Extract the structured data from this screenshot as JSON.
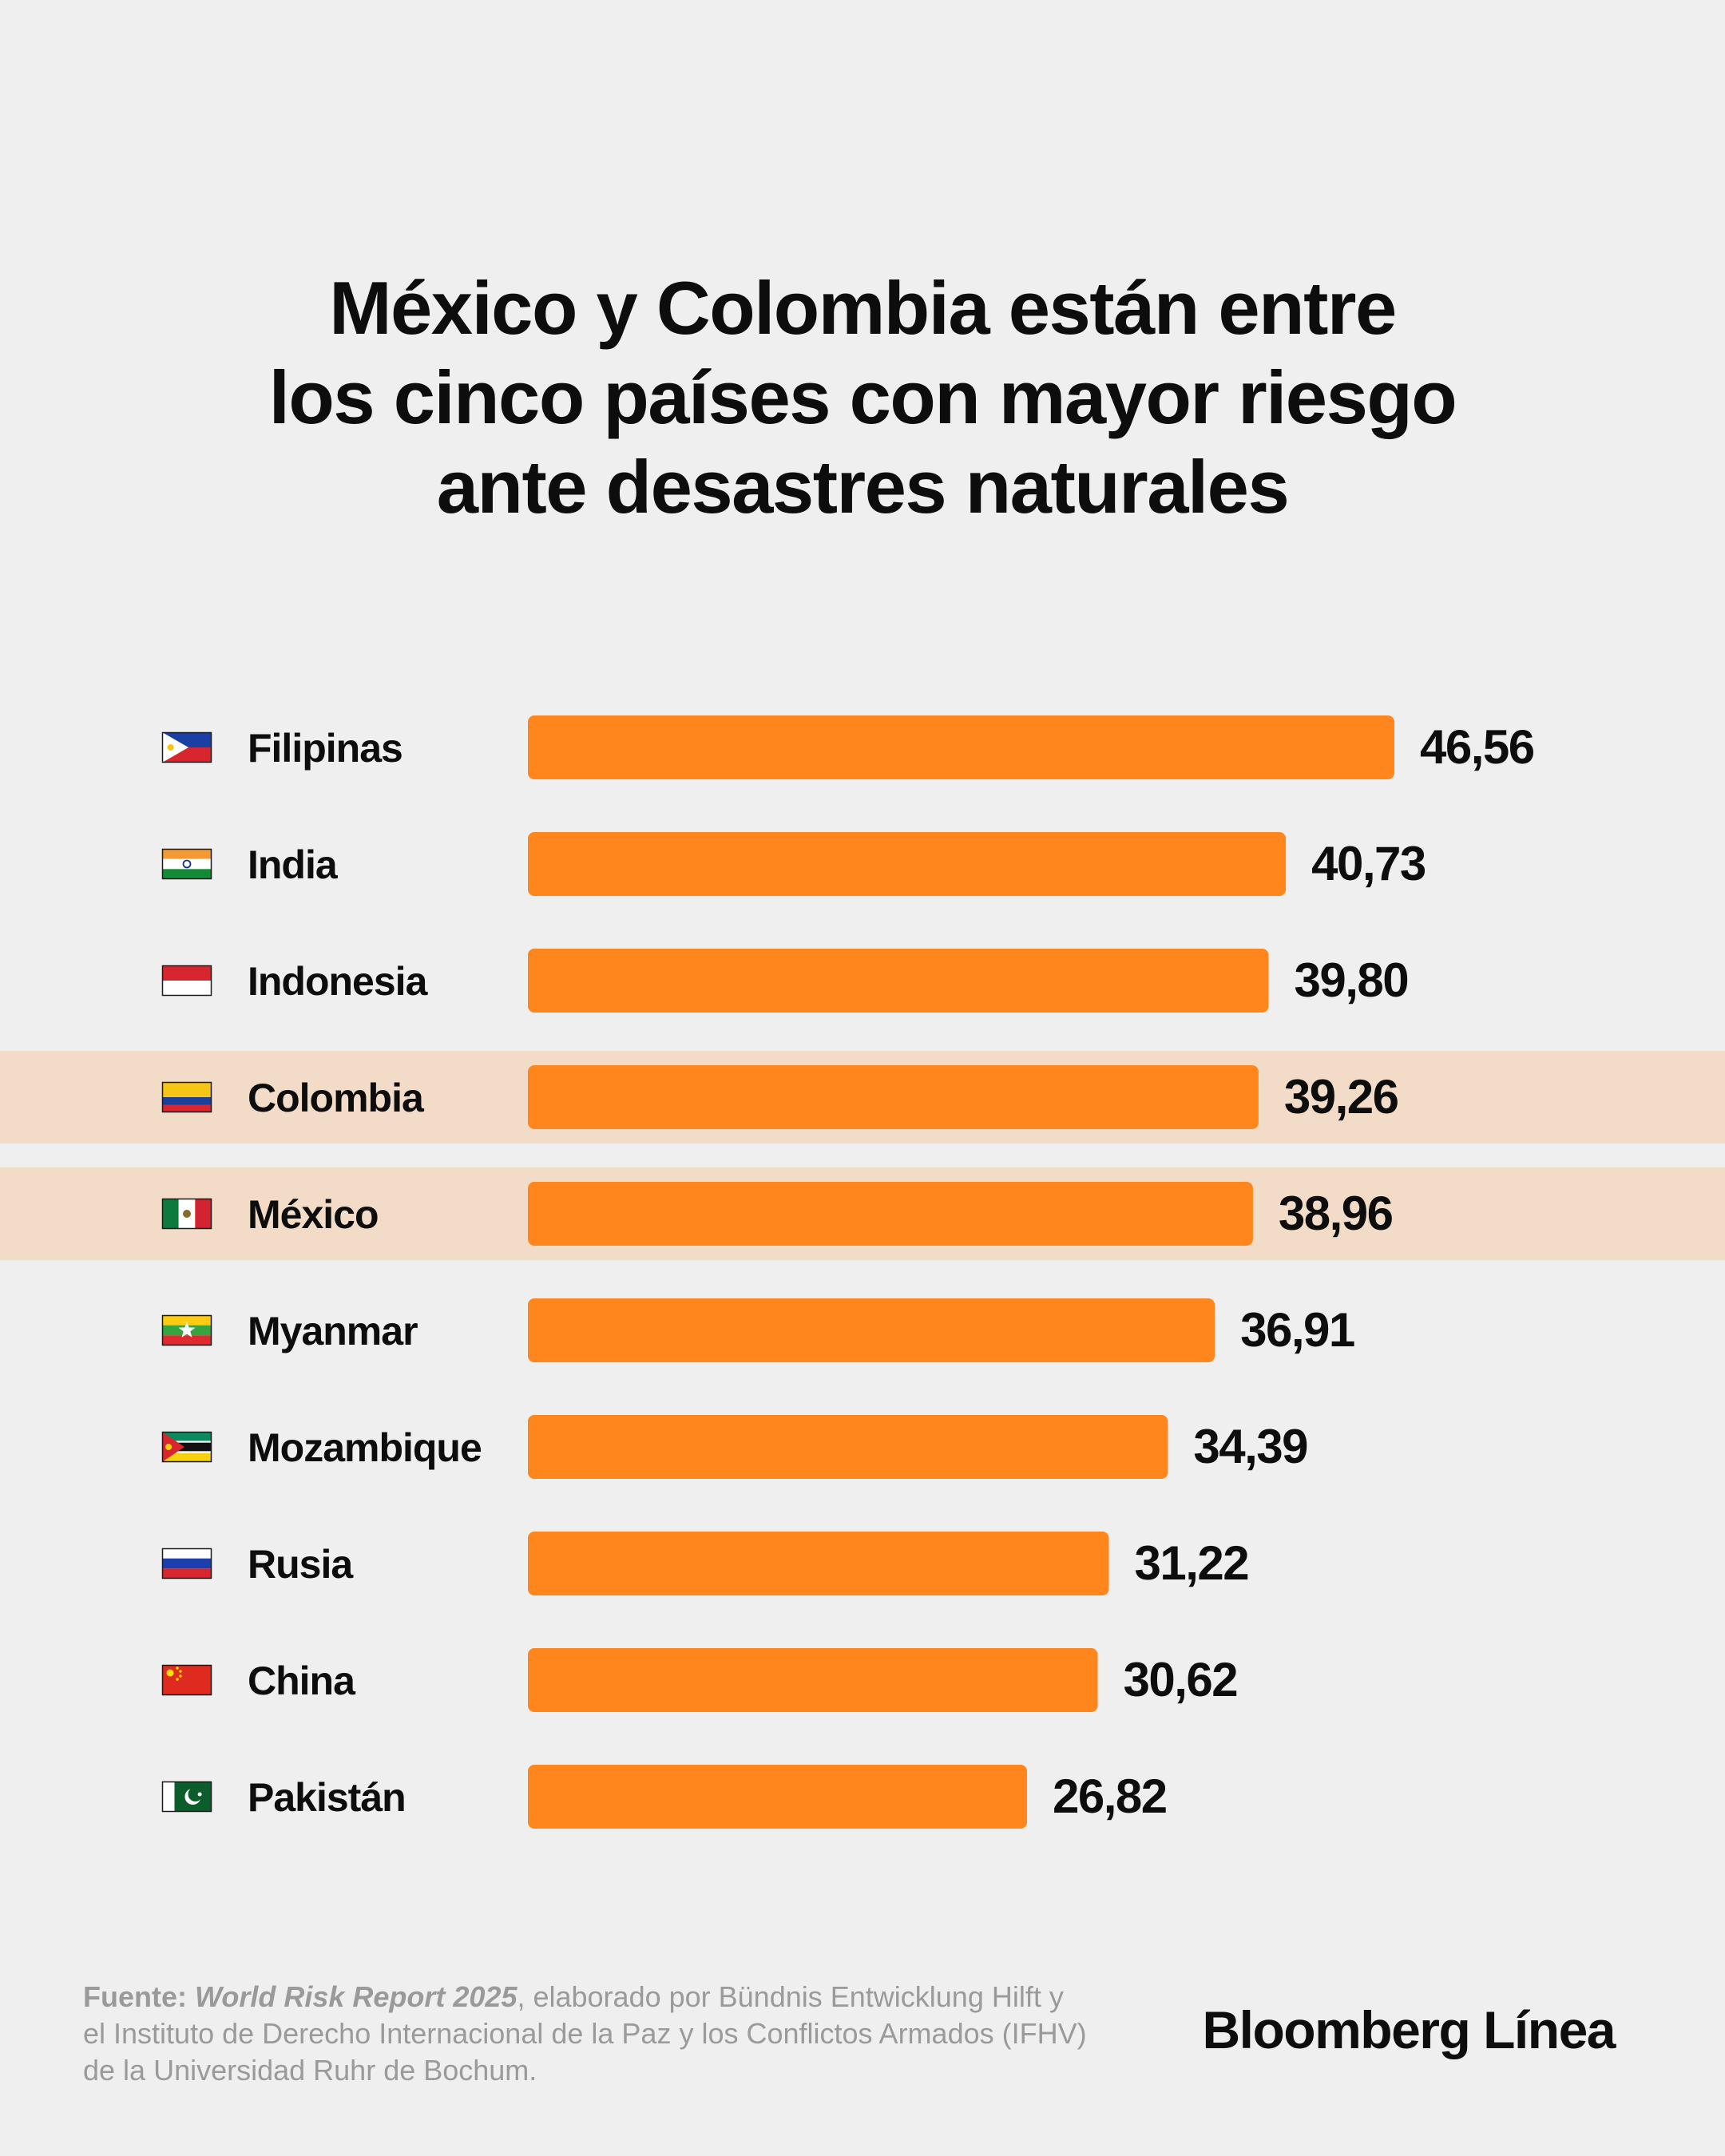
{
  "title_lines": [
    "México y Colombia están entre",
    "los cinco países con mayor riesgo",
    "ante desastres naturales"
  ],
  "chart_data": {
    "type": "bar",
    "orientation": "horizontal",
    "categories": [
      "Filipinas",
      "India",
      "Indonesia",
      "Colombia",
      "México",
      "Myanmar",
      "Mozambique",
      "Rusia",
      "China",
      "Pakistán"
    ],
    "values": [
      46.56,
      40.73,
      39.8,
      39.26,
      38.96,
      36.91,
      34.39,
      31.22,
      30.62,
      26.82
    ],
    "value_labels": [
      "46,56",
      "40,73",
      "39,80",
      "39,26",
      "38,96",
      "36,91",
      "34,39",
      "31,22",
      "30,62",
      "26,82"
    ],
    "highlighted": [
      "Colombia",
      "México"
    ],
    "flag_icons": [
      "philippines-flag-icon",
      "india-flag-icon",
      "indonesia-flag-icon",
      "colombia-flag-icon",
      "mexico-flag-icon",
      "myanmar-flag-icon",
      "mozambique-flag-icon",
      "russia-flag-icon",
      "china-flag-icon",
      "pakistan-flag-icon"
    ],
    "bar_color": "#ff861c",
    "highlight_color": "#f2dcc8",
    "axis": false,
    "grid": false,
    "legend": "none"
  },
  "source": {
    "label": "Fuente:",
    "report": "World Risk Report 2025",
    "text": ", elaborado por Bündnis Entwicklung Hilft y el Instituto de Derecho Internacional de la Paz y los Conflictos Armados (IFHV) de la Universidad Ruhr de Bochum."
  },
  "brand": "Bloomberg Línea"
}
